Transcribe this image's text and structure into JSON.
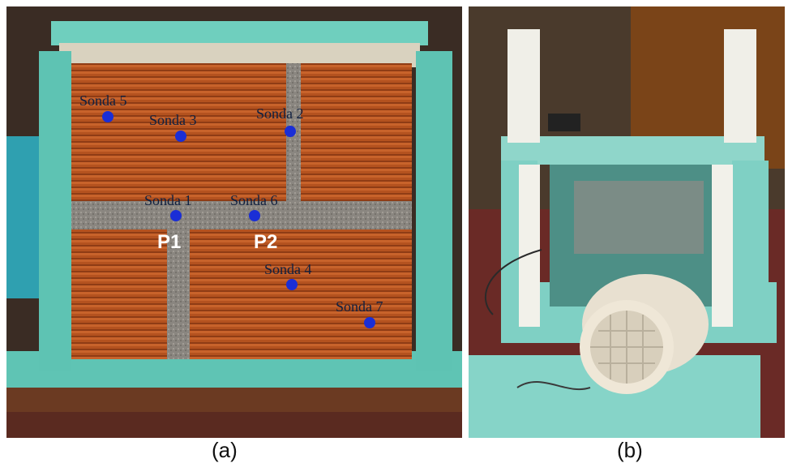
{
  "panel_a": {
    "caption": "(a)",
    "point_labels": [
      "P1",
      "P2"
    ],
    "probes": [
      "Sonda 5",
      "Sonda 3",
      "Sonda 2",
      "Sonda 1",
      "Sonda 6",
      "Sonda 4",
      "Sonda 7"
    ],
    "probe_color": "#1a2ed6",
    "brick_color": "#b4521f",
    "insulation_color": "#5fc4b4"
  },
  "panel_b": {
    "caption": "(b)",
    "insulation_color": "#7fd0c4",
    "fan_color": "#e8e0d0"
  }
}
